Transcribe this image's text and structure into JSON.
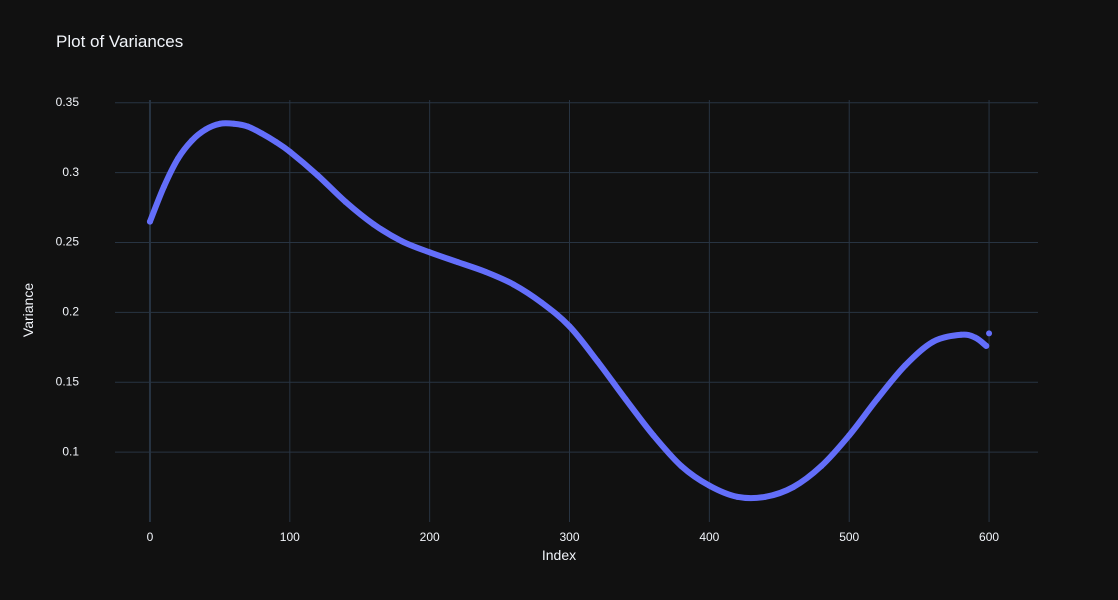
{
  "chart_data": {
    "type": "scatter",
    "title": "Plot of Variances",
    "xlabel": "Index",
    "ylabel": "Variance",
    "xlim": [
      -25,
      635
    ],
    "ylim": [
      0.05,
      0.352
    ],
    "xticks": [
      0,
      100,
      200,
      300,
      400,
      500,
      600
    ],
    "yticks": [
      0.1,
      0.15,
      0.2,
      0.25,
      0.3,
      0.35
    ],
    "ytick_labels": [
      "0.1",
      "0.15",
      "0.2",
      "0.25",
      "0.3",
      "0.35"
    ],
    "grid": true,
    "series": [
      {
        "color": "#636efa",
        "x": [
          0,
          10,
          20,
          30,
          40,
          50,
          60,
          70,
          80,
          90,
          100,
          120,
          140,
          160,
          180,
          200,
          220,
          240,
          260,
          280,
          300,
          320,
          340,
          360,
          380,
          400,
          420,
          440,
          460,
          480,
          500,
          520,
          540,
          560,
          580,
          590,
          598,
          600
        ],
        "y": [
          0.265,
          0.29,
          0.31,
          0.323,
          0.331,
          0.335,
          0.335,
          0.333,
          0.328,
          0.322,
          0.315,
          0.298,
          0.279,
          0.263,
          0.251,
          0.243,
          0.236,
          0.229,
          0.22,
          0.207,
          0.19,
          0.165,
          0.138,
          0.112,
          0.09,
          0.076,
          0.068,
          0.068,
          0.075,
          0.09,
          0.112,
          0.138,
          0.162,
          0.179,
          0.184,
          0.182,
          0.176,
          0.185
        ]
      }
    ]
  }
}
